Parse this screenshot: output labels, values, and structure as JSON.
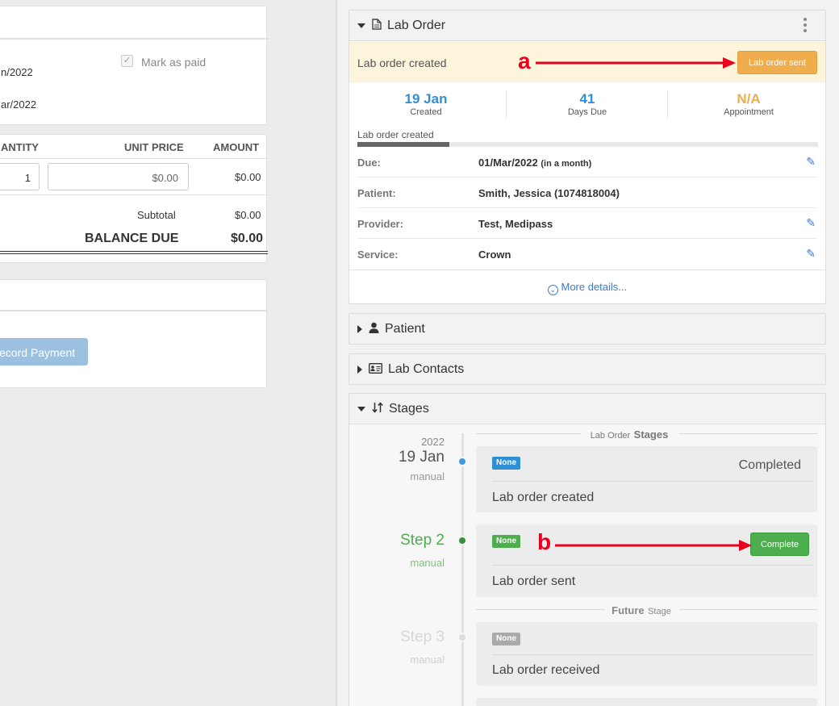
{
  "left": {
    "mark_paid_label": "Mark as paid",
    "date1": "n/2022",
    "date2": "ar/2022",
    "table_headers": [
      "ANTITY",
      "UNIT PRICE",
      "AMOUNT"
    ],
    "row": {
      "qty": "1",
      "unit_price": "$0.00",
      "amount": "$0.00"
    },
    "subtotal_label": "Subtotal",
    "subtotal_value": "$0.00",
    "balance_label": "BALANCE DUE",
    "balance_value": "$0.00",
    "record_payment_label": "ecord Payment"
  },
  "lab_order": {
    "title": "Lab Order",
    "status_text": "Lab order created",
    "sent_button": "Lab order sent",
    "annotation_a": "a",
    "stats": [
      {
        "value": "19 Jan",
        "label": "Created"
      },
      {
        "value": "41",
        "label": "Days Due"
      },
      {
        "value": "N/A",
        "label": "Appointment"
      }
    ],
    "progress_label": "Lab order created",
    "progress_fraction": 0.2,
    "details": {
      "due_key": "Due:",
      "due_val": "01/Mar/2022",
      "due_hint": "(in a month)",
      "patient_key": "Patient:",
      "patient_val": "Smith, Jessica (1074818004)",
      "provider_key": "Provider:",
      "provider_val": "Test, Medipass",
      "service_key": "Service:",
      "service_val": "Crown"
    },
    "more_details": "More details..."
  },
  "patient_panel": {
    "title": "Patient"
  },
  "lab_contacts_panel": {
    "title": "Lab Contacts"
  },
  "stages": {
    "title": "Stages",
    "section_header_small": "Lab Order",
    "section_header_bold": "Stages",
    "stage1": {
      "year": "2022",
      "date": "19 Jan",
      "mode": "manual",
      "badge": "None",
      "status": "Completed",
      "name": "Lab order created"
    },
    "stage2": {
      "step": "Step 2",
      "mode": "manual",
      "badge": "None",
      "button": "Complete",
      "name": "Lab order sent"
    },
    "annotation_b": "b",
    "future_bold": "Future",
    "future_small": "Stage",
    "stage3": {
      "step": "Step 3",
      "mode": "manual",
      "badge": "None",
      "name": "Lab order received"
    }
  },
  "colors": {
    "accent_blue": "#2f8fd3",
    "orange": "#f0ad4e",
    "green": "#4cae4c",
    "annotation_red": "#e8001c"
  }
}
